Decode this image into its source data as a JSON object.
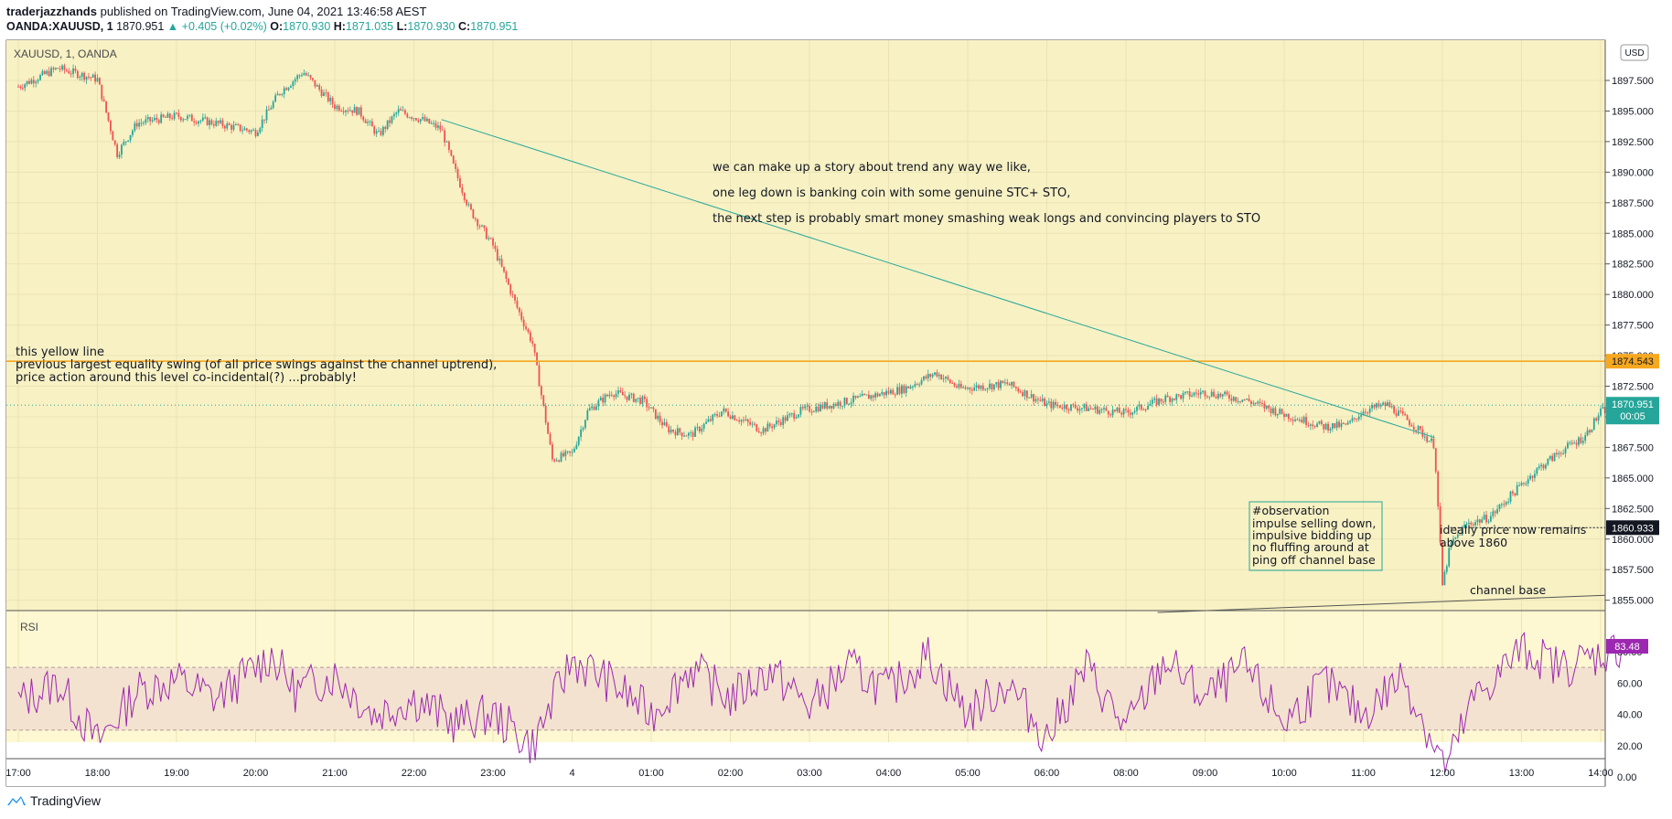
{
  "header": {
    "author": "traderjazzhands",
    "published": "published on TradingView.com, June 04, 2021 13:46:58 AEST",
    "symbol": "OANDA:XAUUSD, 1",
    "last": "1870.951",
    "change": "▲ +0.405 (+0.02%)",
    "o_label": "O:",
    "o": "1870.930",
    "h_label": "H:",
    "h": "1871.035",
    "l_label": "L:",
    "l": "1870.930",
    "c_label": "C:",
    "c": "1870.951"
  },
  "pane_label": "XAUUSD, 1, OANDA",
  "currency": "USD",
  "rsi_label": "RSI",
  "footer_brand": "TradingView",
  "colors": {
    "bg": "#f7f1c4",
    "up": "#26a69a",
    "down": "#ef5350",
    "yellow_line": "#f6a821",
    "trend": "#26a69a",
    "rsi": "#9c27b0",
    "rsi_band": "#f3e2cf"
  },
  "annotations": {
    "story1": "we can make up a story about trend any way we like,",
    "story2": "one leg down is banking coin with some genuine STC+ STO,",
    "story3": "the next step is probably smart money smashing weak longs and convincing players to STO",
    "yellow1": "this yellow line",
    "yellow2": "previous largest equality swing (of all price swings against the channel uptrend),",
    "yellow3": "price action around this level co-incidental(?) ...probably!",
    "obs1": "#observation",
    "obs2": "impulse selling down,",
    "obs3": "impulsive bidding up",
    "obs4": "no fluffing around at",
    "obs5": "ping off channel base",
    "ideal1": "ideally price now remains",
    "ideal2": "above 1860",
    "channel": "channel base"
  },
  "chart_data": {
    "type": "candlestick",
    "symbol": "XAUUSD",
    "timeframe": "1",
    "ylim": [
      1854,
      1900
    ],
    "price_ticks": [
      "1897.500",
      "1895.000",
      "1892.500",
      "1890.000",
      "1887.500",
      "1885.000",
      "1882.500",
      "1880.000",
      "1877.500",
      "1875.000",
      "1872.500",
      "1870.000",
      "1867.500",
      "1865.000",
      "1862.500",
      "1860.000",
      "1857.500",
      "1855.000"
    ],
    "time_labels": [
      "17:00",
      "18:00",
      "19:00",
      "20:00",
      "21:00",
      "22:00",
      "23:00",
      "4",
      "01:00",
      "02:00",
      "03:00",
      "04:00",
      "05:00",
      "06:00",
      "08:00",
      "09:00",
      "10:00",
      "11:00",
      "12:00",
      "13:00",
      "14:00"
    ],
    "price_path": [
      [
        0,
        1897
      ],
      [
        0.5,
        1898.5
      ],
      [
        1,
        1897.6
      ],
      [
        1.25,
        1891.5
      ],
      [
        1.5,
        1894
      ],
      [
        2,
        1894.6
      ],
      [
        2.5,
        1894
      ],
      [
        3,
        1893.3
      ],
      [
        3.3,
        1896.5
      ],
      [
        3.6,
        1898.2
      ],
      [
        4,
        1895.4
      ],
      [
        4.3,
        1895
      ],
      [
        4.55,
        1893
      ],
      [
        4.8,
        1895
      ],
      [
        5.1,
        1894.3
      ],
      [
        5.35,
        1893.5
      ],
      [
        5.5,
        1890.5
      ],
      [
        5.7,
        1887
      ],
      [
        6,
        1884
      ],
      [
        6.3,
        1879
      ],
      [
        6.5,
        1876
      ],
      [
        6.75,
        1866.5
      ],
      [
        7,
        1867
      ],
      [
        7.2,
        1870.5
      ],
      [
        7.5,
        1872
      ],
      [
        7.9,
        1871.3
      ],
      [
        8.2,
        1869
      ],
      [
        8.5,
        1868.5
      ],
      [
        8.9,
        1870.5
      ],
      [
        9.4,
        1868.9
      ],
      [
        9.9,
        1870.5
      ],
      [
        10.5,
        1871.3
      ],
      [
        11.2,
        1872.3
      ],
      [
        11.6,
        1873.6
      ],
      [
        11.9,
        1872.3
      ],
      [
        12.5,
        1872.7
      ],
      [
        13,
        1871
      ],
      [
        13.5,
        1870.7
      ],
      [
        14,
        1870.3
      ],
      [
        14.5,
        1871.5
      ],
      [
        15,
        1872
      ],
      [
        15.5,
        1871.4
      ],
      [
        16,
        1870.2
      ],
      [
        16.5,
        1869.2
      ],
      [
        16.8,
        1869.3
      ],
      [
        17,
        1870.5
      ],
      [
        17.3,
        1871
      ],
      [
        17.6,
        1869.5
      ],
      [
        17.9,
        1867.7
      ],
      [
        18.0,
        1856.2
      ],
      [
        18.1,
        1859.5
      ],
      [
        18.3,
        1861.2
      ],
      [
        18.6,
        1861.8
      ],
      [
        18.9,
        1863.8
      ],
      [
        19.2,
        1865.7
      ],
      [
        19.5,
        1867.2
      ],
      [
        19.8,
        1868.4
      ],
      [
        20.0,
        1870.4
      ],
      [
        20.2,
        1870.9
      ]
    ],
    "horizontal_lines": [
      {
        "price": 1874.543,
        "label": "1874.543"
      },
      {
        "price": 1860.933,
        "label": "1860.933"
      }
    ],
    "last_price": {
      "price": 1870.951,
      "label": "1870.951",
      "countdown": "00:05"
    },
    "trend_line": {
      "start": [
        5.35,
        1894.3
      ],
      "end": [
        17.9,
        1868.3
      ]
    },
    "channel_base": {
      "start": [
        14.4,
        1854
      ],
      "end": [
        20.5,
        1855.4
      ]
    },
    "rsi": {
      "ylim": [
        0,
        100
      ],
      "ticks": [
        "80.00",
        "60.00",
        "40.00",
        "20.00",
        "0.00"
      ],
      "band": [
        30,
        70
      ],
      "last": "83.48",
      "path": [
        [
          0,
          48
        ],
        [
          0.5,
          60
        ],
        [
          1,
          22
        ],
        [
          1.5,
          55
        ],
        [
          2,
          62
        ],
        [
          2.5,
          50
        ],
        [
          3,
          70
        ],
        [
          3.2,
          78
        ],
        [
          3.5,
          55
        ],
        [
          4,
          65
        ],
        [
          4.5,
          40
        ],
        [
          5,
          50
        ],
        [
          5.5,
          35
        ],
        [
          6,
          40
        ],
        [
          6.5,
          20
        ],
        [
          7,
          75
        ],
        [
          7.5,
          60
        ],
        [
          8,
          40
        ],
        [
          8.5,
          70
        ],
        [
          9,
          50
        ],
        [
          9.5,
          68
        ],
        [
          10,
          45
        ],
        [
          10.5,
          70
        ],
        [
          11,
          55
        ],
        [
          11.5,
          78
        ],
        [
          12,
          40
        ],
        [
          12.5,
          60
        ],
        [
          13,
          25
        ],
        [
          13.5,
          70
        ],
        [
          14,
          30
        ],
        [
          14.5,
          75
        ],
        [
          15,
          50
        ],
        [
          15.5,
          70
        ],
        [
          16,
          35
        ],
        [
          16.5,
          60
        ],
        [
          17,
          40
        ],
        [
          17.5,
          65
        ],
        [
          17.9,
          20
        ],
        [
          18.05,
          5
        ],
        [
          18.4,
          50
        ],
        [
          18.7,
          65
        ],
        [
          19,
          82
        ],
        [
          19.5,
          70
        ],
        [
          20,
          78
        ],
        [
          20.3,
          83.48
        ]
      ]
    }
  }
}
